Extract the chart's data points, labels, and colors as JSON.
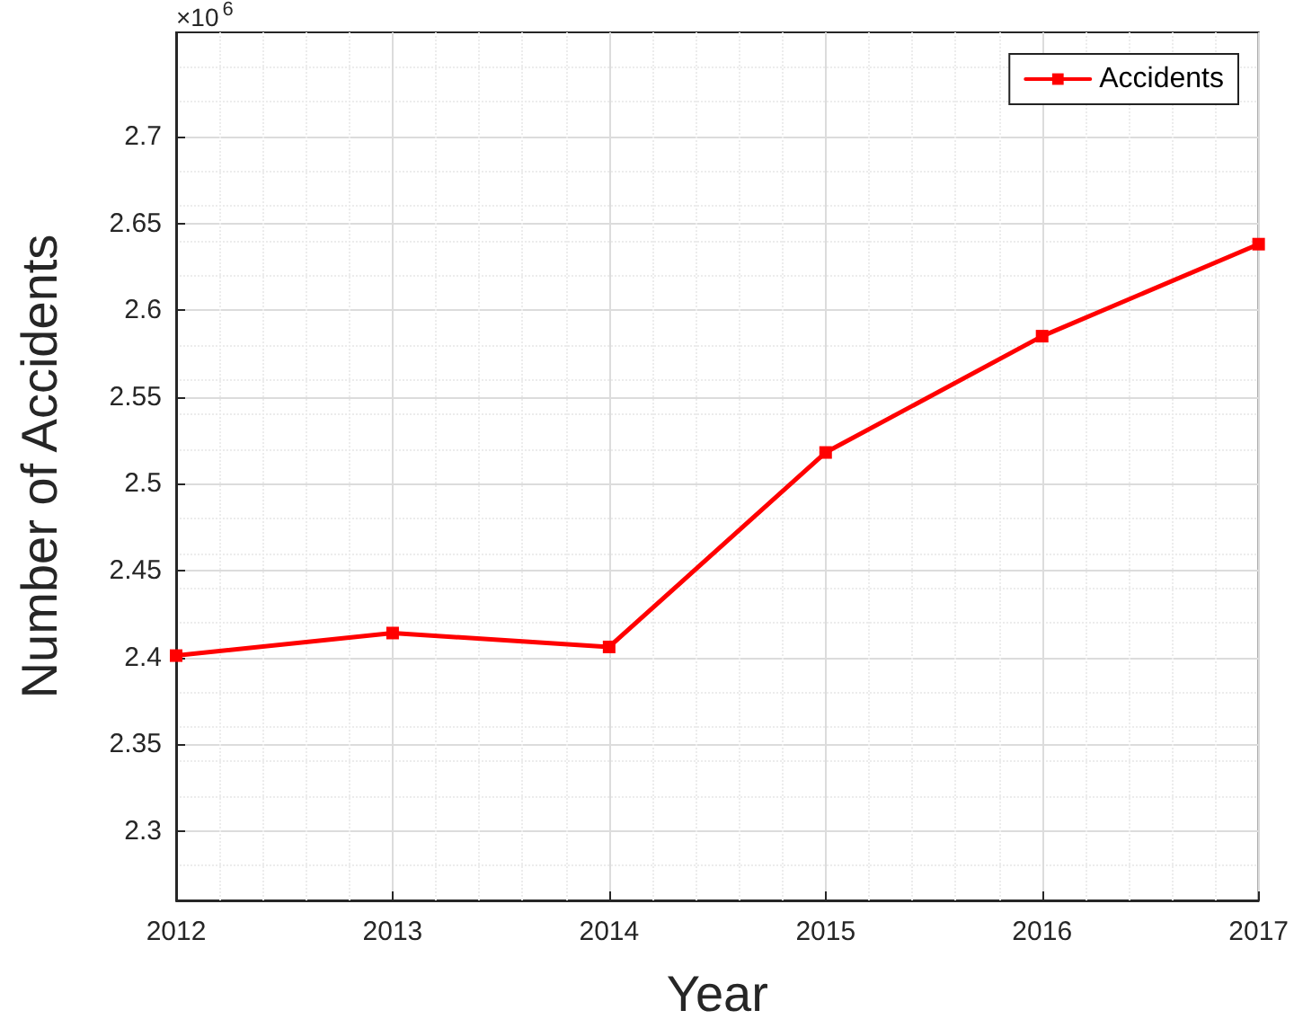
{
  "chart_data": {
    "type": "line",
    "xlabel": "Year",
    "ylabel": "Number of Accidents",
    "annotations": [
      "×10$^{6}$"
    ],
    "x": [
      2012,
      2013,
      2014,
      2015,
      2016,
      2017
    ],
    "series": [
      {
        "name": "Accidents",
        "color": "#ff0000",
        "values": [
          2.401,
          2.414,
          2.406,
          2.518,
          2.585,
          2.638
        ]
      }
    ],
    "xlim": [
      2012,
      2017
    ],
    "xticks": [
      2012,
      2013,
      2014,
      2015,
      2016,
      2017
    ],
    "ylim": [
      2.26,
      2.76
    ],
    "yticks": [
      2.3,
      2.35,
      2.4,
      2.45,
      2.5,
      2.55,
      2.6,
      2.65,
      2.7
    ],
    "grid": true,
    "legend": "top right",
    "marker": "square",
    "line_style": "solid"
  }
}
